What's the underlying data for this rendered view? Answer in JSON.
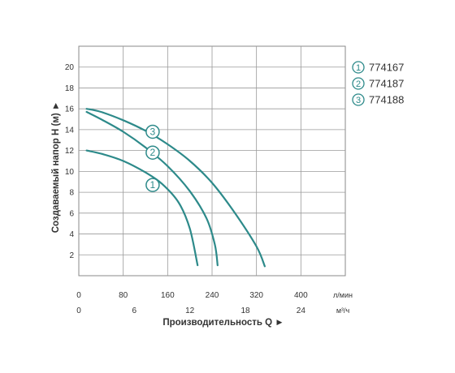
{
  "chart_data": {
    "type": "line",
    "xlabel": "Производительность Q ►",
    "ylabel": "Создаваемый напор H (м) ►",
    "x_unit_primary": "л/мин",
    "x_unit_secondary": "м³/ч",
    "xlim": [
      0,
      480
    ],
    "ylim": [
      0,
      22
    ],
    "x_ticks": [
      "0",
      "80",
      "160",
      "240",
      "320",
      "400"
    ],
    "x_ticks_secondary": [
      "0",
      "6",
      "12",
      "18",
      "24"
    ],
    "y_ticks": [
      "2",
      "4",
      "6",
      "8",
      "10",
      "12",
      "14",
      "16",
      "18",
      "20"
    ],
    "grid": true,
    "legend_position": "right",
    "series": [
      {
        "name": "774167",
        "marker_label": "1",
        "marker_at": [
          133,
          8.7
        ],
        "x": [
          14,
          40,
          80,
          120,
          150,
          180,
          200,
          214
        ],
        "y": [
          12.0,
          11.7,
          11.0,
          9.9,
          8.8,
          7.0,
          4.5,
          1.0
        ]
      },
      {
        "name": "774187",
        "marker_label": "2",
        "marker_at": [
          133,
          11.8
        ],
        "x": [
          14,
          40,
          80,
          120,
          160,
          200,
          230,
          245,
          250
        ],
        "y": [
          15.7,
          15.0,
          13.8,
          12.3,
          10.5,
          8.1,
          5.5,
          3.0,
          1.0
        ]
      },
      {
        "name": "774188",
        "marker_label": "3",
        "marker_at": [
          133,
          13.8
        ],
        "x": [
          14,
          40,
          80,
          120,
          160,
          200,
          240,
          280,
          320,
          335
        ],
        "y": [
          16.0,
          15.7,
          14.9,
          13.9,
          12.6,
          11.0,
          8.9,
          6.1,
          2.8,
          0.9
        ]
      }
    ],
    "line_color": "#2d8a8a"
  }
}
